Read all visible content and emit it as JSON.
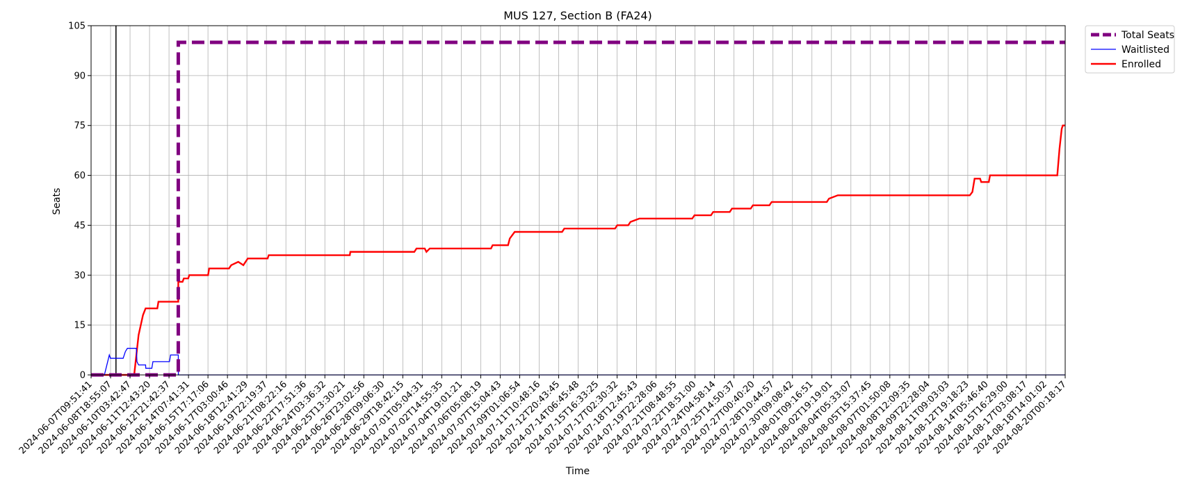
{
  "chart_data": {
    "type": "line",
    "title": "MUS 127, Section B (FA24)",
    "xlabel": "Time",
    "ylabel": "Seats",
    "ylim": [
      0,
      105
    ],
    "yticks": [
      0,
      15,
      30,
      45,
      60,
      75,
      90,
      105
    ],
    "grid": true,
    "legend_position": "outside-top-right",
    "xlim": [
      "2024-06-07T09:51:41",
      "2024-08-20T00:18:17"
    ],
    "xticks": [
      "2024-06-07T09:51:41",
      "2024-06-08T18:55:07",
      "2024-06-10T03:42:47",
      "2024-06-11T12:43:20",
      "2024-06-12T21:42:37",
      "2024-06-14T07:41:31",
      "2024-06-15T17:17:06",
      "2024-06-17T03:00:46",
      "2024-06-18T12:41:29",
      "2024-06-19T22:19:37",
      "2024-06-21T08:22:16",
      "2024-06-22T17:51:36",
      "2024-06-24T03:36:32",
      "2024-06-25T13:30:21",
      "2024-06-26T23:02:56",
      "2024-06-28T09:06:30",
      "2024-06-29T18:42:15",
      "2024-07-01T05:04:31",
      "2024-07-02T14:55:35",
      "2024-07-04T19:01:21",
      "2024-07-06T05:08:19",
      "2024-07-07T15:04:43",
      "2024-07-09T01:06:54",
      "2024-07-11T10:48:16",
      "2024-07-12T20:43:45",
      "2024-07-14T06:45:48",
      "2024-07-15T16:33:25",
      "2024-07-17T02:30:32",
      "2024-07-18T12:45:43",
      "2024-07-19T22:28:06",
      "2024-07-21T08:48:55",
      "2024-07-22T18:51:00",
      "2024-07-24T04:58:14",
      "2024-07-25T14:50:37",
      "2024-07-27T00:40:20",
      "2024-07-28T10:44:57",
      "2024-07-30T09:08:42",
      "2024-08-01T09:16:51",
      "2024-08-02T19:19:01",
      "2024-08-04T05:33:07",
      "2024-08-05T15:37:45",
      "2024-08-07T01:50:08",
      "2024-08-08T12:09:35",
      "2024-08-09T22:28:04",
      "2024-08-11T09:03:03",
      "2024-08-12T19:18:23",
      "2024-08-14T05:46:40",
      "2024-08-15T16:29:00",
      "2024-08-17T03:08:17",
      "2024-08-18T14:01:02",
      "2024-08-20T00:18:17"
    ],
    "series": [
      {
        "name": "Total Seats",
        "color": "#800080",
        "style": "dashed",
        "points": [
          [
            "2024-06-07T09:51:41",
            0
          ],
          [
            "2024-06-12T21:42:37",
            0
          ],
          [
            "2024-06-14T00:00:00",
            0
          ],
          [
            "2024-06-14T00:00:00",
            100
          ],
          [
            "2024-08-20T00:18:17",
            100
          ]
        ]
      },
      {
        "name": "Waitlisted",
        "color": "#0000ff",
        "style": "solid",
        "points": [
          [
            "2024-06-07T09:51:41",
            0
          ],
          [
            "2024-06-08T10:00:00",
            0
          ],
          [
            "2024-06-08T13:00:00",
            2
          ],
          [
            "2024-06-08T16:00:00",
            4
          ],
          [
            "2024-06-08T18:55:07",
            6
          ],
          [
            "2024-06-08T21:00:00",
            5
          ],
          [
            "2024-06-09T10:00:00",
            5
          ],
          [
            "2024-06-09T20:00:00",
            5
          ],
          [
            "2024-06-10T00:00:00",
            7
          ],
          [
            "2024-06-10T03:42:47",
            8
          ],
          [
            "2024-06-10T20:00:00",
            8
          ],
          [
            "2024-06-10T21:00:00",
            4
          ],
          [
            "2024-06-11T00:00:00",
            3
          ],
          [
            "2024-06-11T12:43:20",
            3
          ],
          [
            "2024-06-11T13:00:00",
            2
          ],
          [
            "2024-06-12T00:00:00",
            2
          ],
          [
            "2024-06-12T02:00:00",
            4
          ],
          [
            "2024-06-13T08:00:00",
            4
          ],
          [
            "2024-06-13T10:00:00",
            6
          ],
          [
            "2024-06-14T00:00:00",
            6
          ],
          [
            "2024-06-14T00:10:00",
            0
          ],
          [
            "2024-08-20T00:18:17",
            0
          ]
        ]
      },
      {
        "name": "Enrolled",
        "color": "#ff0000",
        "style": "solid",
        "points": [
          [
            "2024-06-07T09:51:41",
            0
          ],
          [
            "2024-06-10T16:00:00",
            0
          ],
          [
            "2024-06-11T00:00:00",
            12
          ],
          [
            "2024-06-11T08:00:00",
            18
          ],
          [
            "2024-06-11T12:43:20",
            20
          ],
          [
            "2024-06-12T10:00:00",
            20
          ],
          [
            "2024-06-12T12:00:00",
            22
          ],
          [
            "2024-06-13T10:00:00",
            22
          ],
          [
            "2024-06-14T00:00:00",
            22
          ],
          [
            "2024-06-14T00:00:00",
            28
          ],
          [
            "2024-06-14T07:41:31",
            28
          ],
          [
            "2024-06-14T10:00:00",
            29
          ],
          [
            "2024-06-14T18:00:00",
            29
          ],
          [
            "2024-06-14T20:00:00",
            30
          ],
          [
            "2024-06-16T06:00:00",
            30
          ],
          [
            "2024-06-16T08:00:00",
            32
          ],
          [
            "2024-06-17T20:00:00",
            32
          ],
          [
            "2024-06-18T00:00:00",
            33
          ],
          [
            "2024-06-18T12:41:29",
            34
          ],
          [
            "2024-06-18T22:00:00",
            33
          ],
          [
            "2024-06-19T06:00:00",
            35
          ],
          [
            "2024-06-20T18:00:00",
            35
          ],
          [
            "2024-06-20T20:00:00",
            36
          ],
          [
            "2024-06-26T23:02:56",
            36
          ],
          [
            "2024-06-27T00:00:00",
            37
          ],
          [
            "2024-07-01T20:00:00",
            37
          ],
          [
            "2024-07-02T00:00:00",
            38
          ],
          [
            "2024-07-02T14:55:35",
            38
          ],
          [
            "2024-07-02T18:00:00",
            37
          ],
          [
            "2024-07-03T00:00:00",
            38
          ],
          [
            "2024-07-07T15:04:43",
            38
          ],
          [
            "2024-07-07T18:00:00",
            39
          ],
          [
            "2024-07-08T22:00:00",
            39
          ],
          [
            "2024-07-09T01:06:54",
            41
          ],
          [
            "2024-07-09T10:00:00",
            43
          ],
          [
            "2024-07-13T00:00:00",
            43
          ],
          [
            "2024-07-13T04:00:00",
            44
          ],
          [
            "2024-07-17T00:00:00",
            44
          ],
          [
            "2024-07-17T04:00:00",
            45
          ],
          [
            "2024-07-18T00:00:00",
            45
          ],
          [
            "2024-07-18T04:00:00",
            46
          ],
          [
            "2024-07-18T20:00:00",
            47
          ],
          [
            "2024-07-22T20:00:00",
            47
          ],
          [
            "2024-07-23T00:00:00",
            48
          ],
          [
            "2024-07-24T06:00:00",
            48
          ],
          [
            "2024-07-24T10:00:00",
            49
          ],
          [
            "2024-07-25T16:00:00",
            49
          ],
          [
            "2024-07-25T20:00:00",
            50
          ],
          [
            "2024-07-27T06:00:00",
            50
          ],
          [
            "2024-07-27T10:00:00",
            51
          ],
          [
            "2024-07-28T16:00:00",
            51
          ],
          [
            "2024-07-28T20:00:00",
            52
          ],
          [
            "2024-08-02T00:00:00",
            52
          ],
          [
            "2024-08-02T04:00:00",
            53
          ],
          [
            "2024-08-02T20:00:00",
            54
          ],
          [
            "2024-08-12T19:18:23",
            54
          ],
          [
            "2024-08-13T00:00:00",
            55
          ],
          [
            "2024-08-13T04:00:00",
            59
          ],
          [
            "2024-08-13T14:00:00",
            59
          ],
          [
            "2024-08-13T16:00:00",
            58
          ],
          [
            "2024-08-14T05:46:40",
            58
          ],
          [
            "2024-08-14T08:00:00",
            60
          ],
          [
            "2024-08-19T10:00:00",
            60
          ],
          [
            "2024-08-19T14:00:00",
            68
          ],
          [
            "2024-08-19T18:00:00",
            74
          ],
          [
            "2024-08-19T20:00:00",
            75
          ],
          [
            "2024-08-20T00:18:17",
            75
          ]
        ]
      }
    ],
    "cursor_time": "2024-06-09T07:00:00"
  }
}
